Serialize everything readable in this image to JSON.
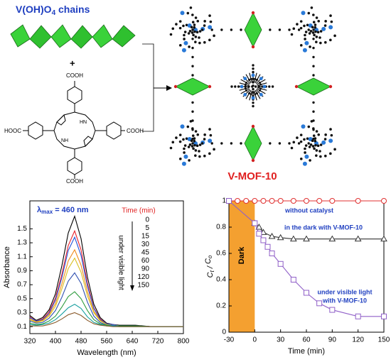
{
  "labels": {
    "chain": "V(OH)O",
    "chain_sub": "4",
    "chain_tail": " chains",
    "plus": "+",
    "product": "V-MOF-10"
  },
  "molecule": {
    "top": "COOH",
    "left": "HOOC",
    "right": "COOH",
    "bottom": "COOH",
    "nh_upper": "HN",
    "nh_lower": "NH"
  },
  "chart_data": [
    {
      "type": "line",
      "xlabel": "Wavelength (nm)",
      "ylabel": "Absorbance",
      "xlim": [
        320,
        800
      ],
      "ylim": [
        0,
        1.9
      ],
      "xticks": [
        320,
        400,
        480,
        560,
        640,
        720,
        800
      ],
      "yticks": [
        0.1,
        0.3,
        0.5,
        0.7,
        0.9,
        1.1,
        1.3,
        1.5
      ],
      "legend_title": "Time (min)",
      "annotations": {
        "lambda": "λ",
        "lambda_sub": "max",
        "lambda_tail": " = 460 nm",
        "light": "under visible light"
      },
      "x": [
        320,
        340,
        360,
        380,
        400,
        420,
        440,
        460,
        480,
        500,
        520,
        540,
        560,
        580,
        600,
        650,
        700,
        750,
        800
      ],
      "series": [
        {
          "name": "0",
          "color": "#000000",
          "values": [
            0.26,
            0.19,
            0.23,
            0.34,
            0.57,
            0.97,
            1.44,
            1.68,
            1.36,
            0.81,
            0.42,
            0.23,
            0.15,
            0.13,
            0.12,
            0.12,
            0.1,
            0.1,
            0.1
          ]
        },
        {
          "name": "5",
          "color": "#e8202a",
          "values": [
            0.24,
            0.18,
            0.21,
            0.31,
            0.51,
            0.85,
            1.26,
            1.47,
            1.2,
            0.72,
            0.37,
            0.21,
            0.14,
            0.13,
            0.11,
            0.11,
            0.1,
            0.1,
            0.1
          ]
        },
        {
          "name": "15",
          "color": "#1f4fd8",
          "values": [
            0.23,
            0.18,
            0.2,
            0.29,
            0.48,
            0.8,
            1.19,
            1.38,
            1.12,
            0.68,
            0.36,
            0.2,
            0.14,
            0.13,
            0.11,
            0.11,
            0.1,
            0.1,
            0.1
          ]
        },
        {
          "name": "30",
          "color": "#f08a1c",
          "values": [
            0.21,
            0.17,
            0.19,
            0.27,
            0.43,
            0.71,
            1.04,
            1.2,
            0.98,
            0.6,
            0.32,
            0.19,
            0.13,
            0.12,
            0.11,
            0.11,
            0.1,
            0.1,
            0.1
          ]
        },
        {
          "name": "45",
          "color": "#d8c020",
          "values": [
            0.2,
            0.16,
            0.18,
            0.25,
            0.39,
            0.64,
            0.93,
            1.08,
            0.88,
            0.54,
            0.3,
            0.18,
            0.13,
            0.12,
            0.11,
            0.11,
            0.1,
            0.1,
            0.1
          ]
        },
        {
          "name": "60",
          "color": "#3050b0",
          "values": [
            0.18,
            0.15,
            0.16,
            0.22,
            0.33,
            0.52,
            0.75,
            0.87,
            0.72,
            0.45,
            0.25,
            0.16,
            0.12,
            0.12,
            0.11,
            0.11,
            0.1,
            0.1,
            0.1
          ]
        },
        {
          "name": "90",
          "color": "#2a9a3a",
          "values": [
            0.15,
            0.13,
            0.14,
            0.18,
            0.25,
            0.38,
            0.53,
            0.6,
            0.5,
            0.33,
            0.2,
            0.14,
            0.12,
            0.11,
            0.11,
            0.11,
            0.1,
            0.1,
            0.1
          ]
        },
        {
          "name": "120",
          "color": "#1aa0a0",
          "values": [
            0.13,
            0.12,
            0.13,
            0.15,
            0.2,
            0.28,
            0.37,
            0.42,
            0.36,
            0.24,
            0.16,
            0.13,
            0.11,
            0.11,
            0.1,
            0.1,
            0.1,
            0.1,
            0.1
          ]
        },
        {
          "name": "150",
          "color": "#8a5a2a",
          "values": [
            0.11,
            0.11,
            0.11,
            0.13,
            0.16,
            0.21,
            0.27,
            0.3,
            0.26,
            0.19,
            0.14,
            0.12,
            0.11,
            0.1,
            0.1,
            0.1,
            0.1,
            0.1,
            0.1
          ]
        }
      ]
    },
    {
      "type": "line",
      "xlabel": "Time (min)",
      "ylabel": [
        "C",
        "t",
        " / ",
        "C",
        "o"
      ],
      "xlim": [
        -30,
        150
      ],
      "ylim": [
        0,
        1
      ],
      "xticks": [
        -30,
        0,
        30,
        60,
        90,
        120,
        150
      ],
      "yticks": [
        0,
        0.2,
        0.4,
        0.6,
        0.8,
        1
      ],
      "shaded": {
        "range": [
          -30,
          0
        ],
        "label": "Dark",
        "color": "#f4a030"
      },
      "annotations": [
        "without catalyst",
        "in the dark with V-MOF-10",
        "under visible light",
        "with V-MOF-10"
      ],
      "series": [
        {
          "name": "without catalyst",
          "color": "#e03030",
          "marker": "circle",
          "x": [
            -30,
            -20,
            -10,
            0,
            10,
            20,
            30,
            45,
            60,
            75,
            90,
            120,
            150
          ],
          "values": [
            1,
            1,
            1,
            1,
            1,
            1,
            1,
            1,
            1,
            1,
            1,
            1,
            1
          ]
        },
        {
          "name": "in the dark with V-MOF-10",
          "color": "#333333",
          "marker": "triangle",
          "x": [
            0,
            5,
            10,
            20,
            30,
            45,
            60,
            90,
            120,
            150
          ],
          "values": [
            0.83,
            0.8,
            0.76,
            0.73,
            0.72,
            0.71,
            0.71,
            0.71,
            0.71,
            0.71
          ]
        },
        {
          "name": "under visible light with V-MOF-10",
          "color": "#9060c8",
          "marker": "square",
          "x": [
            -30,
            0,
            5,
            10,
            15,
            20,
            30,
            45,
            60,
            75,
            90,
            120,
            150
          ],
          "values": [
            1,
            0.83,
            0.75,
            0.7,
            0.65,
            0.6,
            0.52,
            0.4,
            0.3,
            0.22,
            0.17,
            0.12,
            0.12
          ]
        }
      ]
    }
  ]
}
